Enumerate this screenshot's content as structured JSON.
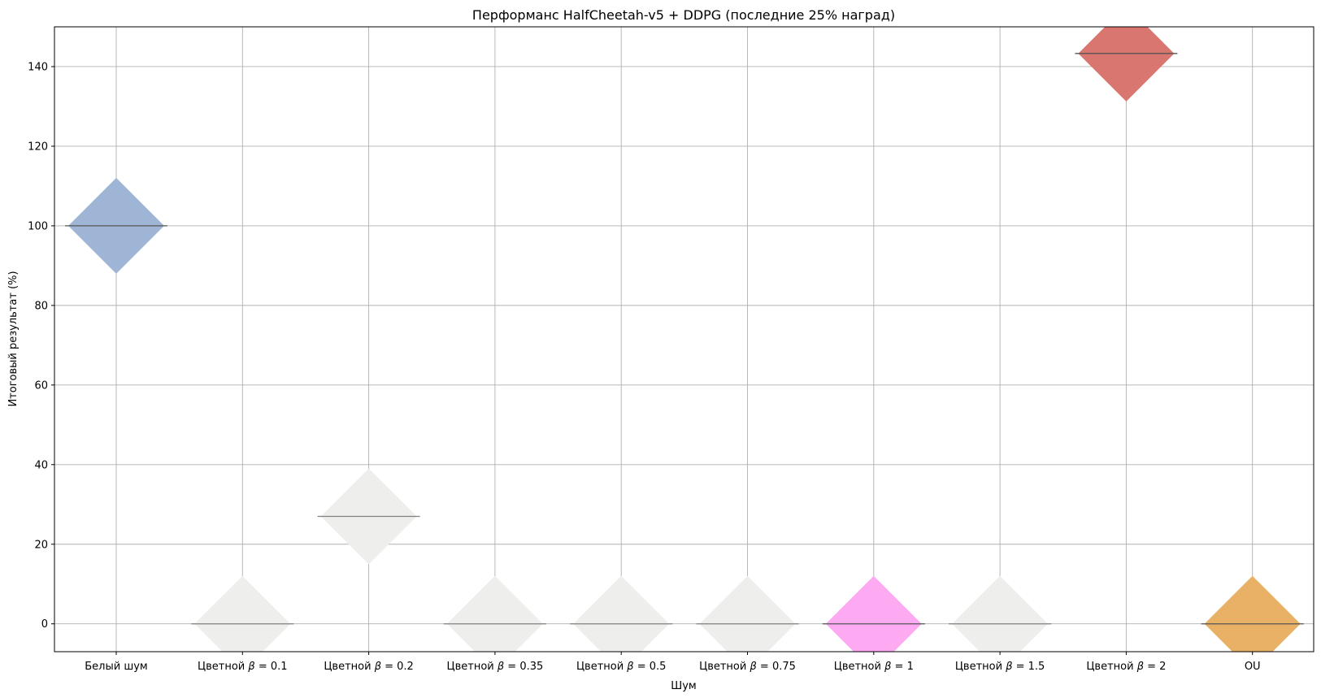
{
  "chart_data": {
    "type": "scatter",
    "title": "Перформанс HalfCheetah-v5 + DDPG (последние 25% наград)",
    "xlabel": "Шум",
    "ylabel": "Итоговый результат (%)",
    "ylim": [
      -7,
      150
    ],
    "yticks": [
      0,
      20,
      40,
      60,
      80,
      100,
      120,
      140
    ],
    "grid": true,
    "categories": [
      {
        "prefix": "Белый шум",
        "beta": ""
      },
      {
        "prefix": "Цветной ",
        "beta": "0.1"
      },
      {
        "prefix": "Цветной ",
        "beta": "0.2"
      },
      {
        "prefix": "Цветной ",
        "beta": "0.35"
      },
      {
        "prefix": "Цветной ",
        "beta": "0.5"
      },
      {
        "prefix": "Цветной ",
        "beta": "0.75"
      },
      {
        "prefix": "Цветной ",
        "beta": "1"
      },
      {
        "prefix": "Цветной ",
        "beta": "1.5"
      },
      {
        "prefix": "Цветной ",
        "beta": "2"
      },
      {
        "prefix": "OU",
        "beta": ""
      }
    ],
    "values": [
      100,
      0,
      27,
      0,
      0,
      0,
      0,
      0,
      143.3,
      0
    ],
    "colors": [
      "#9fb5d6",
      "#eeeeec",
      "#eeeeec",
      "#eeeeec",
      "#eeeeec",
      "#eeeeec",
      "#fdaaf3",
      "#eeeeec",
      "#d9766f",
      "#e8b166"
    ],
    "median_colors": [
      "#555555",
      "#808080",
      "#808080",
      "#808080",
      "#808080",
      "#808080",
      "#555555",
      "#808080",
      "#555555",
      "#555555"
    ]
  }
}
